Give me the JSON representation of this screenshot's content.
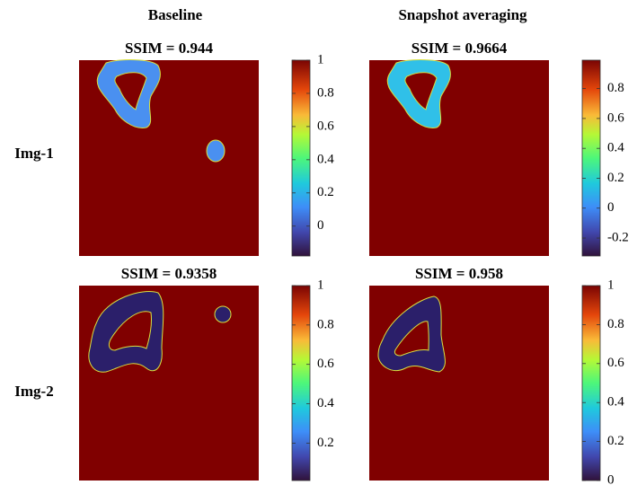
{
  "column_headers": [
    "Baseline",
    "Snapshot averaging"
  ],
  "row_labels": [
    "Img-1",
    "Img-2"
  ],
  "panels": [
    {
      "title": "SSIM = 0.944",
      "colorbar": {
        "lim": [
          -0.18,
          1
        ],
        "ticks": [
          1,
          0.8,
          0.6,
          0.4,
          0.2,
          0
        ]
      }
    },
    {
      "title": "SSIM = 0.9664",
      "colorbar": {
        "lim": [
          -0.32,
          0.99
        ],
        "ticks": [
          0.8,
          0.6,
          0.4,
          0.2,
          0,
          -0.2
        ]
      }
    },
    {
      "title": "SSIM = 0.9358",
      "colorbar": {
        "lim": [
          0.01,
          1
        ],
        "ticks": [
          1,
          0.8,
          0.6,
          0.4,
          0.2
        ]
      }
    },
    {
      "title": "SSIM = 0.958",
      "colorbar": {
        "lim": [
          0,
          1
        ],
        "ticks": [
          1,
          0.8,
          0.6,
          0.4,
          0.2,
          0
        ]
      }
    }
  ]
}
